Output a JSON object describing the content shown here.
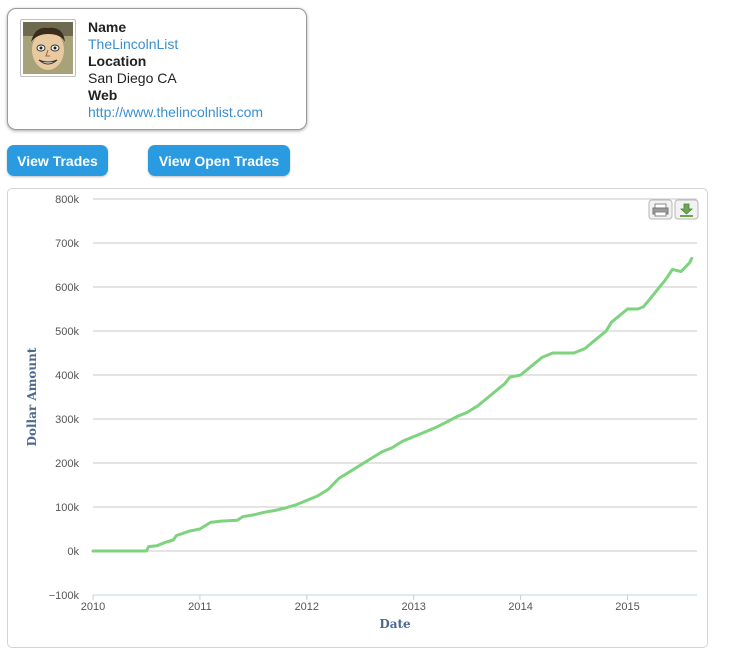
{
  "profile": {
    "name_label": "Name",
    "name": "TheLincolnList",
    "location_label": "Location",
    "location": "San Diego CA",
    "web_label": "Web",
    "web": "http://www.thelincolnlist.com"
  },
  "buttons": {
    "view_trades": "View Trades",
    "view_open_trades": "View Open Trades"
  },
  "toolbar": {
    "print_icon": "print-icon",
    "export_icon": "download-icon"
  },
  "chart_data": {
    "type": "line",
    "title": "",
    "xlabel": "Date",
    "ylabel": "Dollar Amount",
    "xlim": [
      2010,
      2015.65
    ],
    "ylim": [
      -100000,
      800000
    ],
    "xticks": [
      2010,
      2011,
      2012,
      2013,
      2014,
      2015
    ],
    "xtick_labels": [
      "2010",
      "2011",
      "2012",
      "2013",
      "2014",
      "2015"
    ],
    "yticks": [
      -100000,
      0,
      100000,
      200000,
      300000,
      400000,
      500000,
      600000,
      700000,
      800000
    ],
    "ytick_labels": [
      "−100k",
      "0k",
      "100k",
      "200k",
      "300k",
      "400k",
      "500k",
      "600k",
      "700k",
      "800k"
    ],
    "grid": true,
    "line_color": "#7ed37e",
    "series": [
      {
        "x": [
          2010.0,
          2010.5,
          2010.52,
          2010.6,
          2010.68,
          2010.75,
          2010.78,
          2010.9,
          2011.0,
          2011.1,
          2011.2,
          2011.35,
          2011.4,
          2011.5,
          2011.6,
          2011.7,
          2011.8,
          2011.9,
          2012.0,
          2012.1,
          2012.2,
          2012.3,
          2012.4,
          2012.5,
          2012.6,
          2012.7,
          2012.8,
          2012.9,
          2013.0,
          2013.1,
          2013.2,
          2013.3,
          2013.4,
          2013.5,
          2013.6,
          2013.7,
          2013.75,
          2013.8,
          2013.85,
          2013.9,
          2014.0,
          2014.1,
          2014.2,
          2014.3,
          2014.4,
          2014.5,
          2014.55,
          2014.6,
          2014.7,
          2014.75,
          2014.8,
          2014.85,
          2015.0,
          2015.05,
          2015.1,
          2015.15,
          2015.2,
          2015.3,
          2015.35,
          2015.38,
          2015.42,
          2015.5,
          2015.58,
          2015.6
        ],
        "y": [
          0,
          0,
          10000,
          12000,
          20000,
          25000,
          35000,
          45000,
          50000,
          65000,
          68000,
          70000,
          78000,
          82000,
          88000,
          92000,
          98000,
          105000,
          115000,
          125000,
          140000,
          165000,
          180000,
          195000,
          210000,
          225000,
          235000,
          250000,
          260000,
          270000,
          280000,
          292000,
          305000,
          315000,
          330000,
          350000,
          360000,
          370000,
          380000,
          395000,
          400000,
          420000,
          440000,
          450000,
          450000,
          450000,
          455000,
          460000,
          480000,
          490000,
          500000,
          520000,
          550000,
          550000,
          550000,
          555000,
          570000,
          600000,
          615000,
          625000,
          640000,
          635000,
          655000,
          665000
        ]
      }
    ]
  }
}
